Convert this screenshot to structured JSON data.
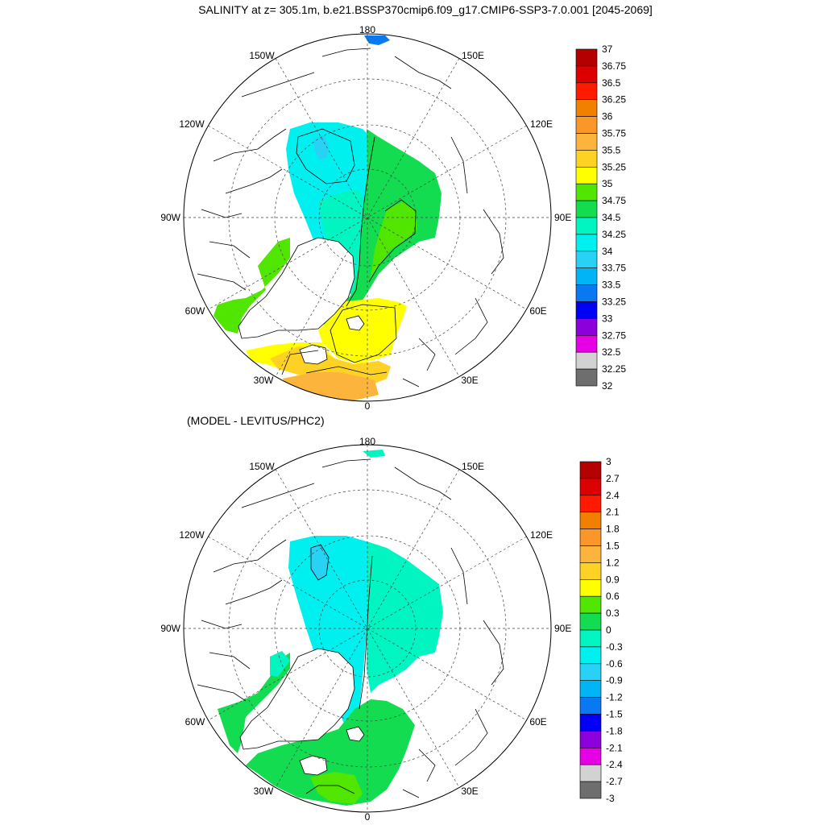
{
  "title": "SALINITY at z= 305.1m, b.e21.BSSP370cmip6.f09_g17.CMIP6-SSP3-7.0.001 [2045-2069]",
  "subtitle": "(MODEL - LEVITUS/PHC2)",
  "longitude_labels": {
    "top": "180",
    "bottom": "0",
    "left": "90W",
    "right": "90E",
    "w150": "150W",
    "e150": "150E",
    "w120": "120W",
    "e120": "120E",
    "w60": "60W",
    "e60": "60E",
    "w30": "30W",
    "e30": "30E"
  },
  "colorbar_top": {
    "labels": [
      "37",
      "36.75",
      "36.5",
      "36.25",
      "36",
      "35.75",
      "35.5",
      "35.25",
      "35",
      "34.75",
      "34.5",
      "34.25",
      "34",
      "33.75",
      "33.5",
      "33.25",
      "33",
      "32.75",
      "32.5",
      "32.25",
      "32"
    ],
    "colors": [
      "#b40000",
      "#dd0000",
      "#ff1a00",
      "#f28000",
      "#fb9628",
      "#fcb43c",
      "#fdd224",
      "#ffff00",
      "#50e600",
      "#14dc50",
      "#00f5c0",
      "#00f0f0",
      "#28d2f5",
      "#00b4f5",
      "#0a78f0",
      "#0000f5",
      "#8c00dc",
      "#e600e6",
      "#d2d2d2",
      "#6e6e6e"
    ]
  },
  "colorbar_bottom": {
    "labels": [
      "3",
      "2.7",
      "2.4",
      "2.1",
      "1.8",
      "1.5",
      "1.2",
      "0.9",
      "0.6",
      "0.3",
      "0",
      "-0.3",
      "-0.6",
      "-0.9",
      "-1.2",
      "-1.5",
      "-1.8",
      "-2.1",
      "-2.4",
      "-2.7",
      "-3"
    ],
    "colors": [
      "#b40000",
      "#dd0000",
      "#ff1a00",
      "#f28000",
      "#fb9628",
      "#fcb43c",
      "#fdd224",
      "#ffff00",
      "#50e600",
      "#14dc50",
      "#00f5c0",
      "#00f0f0",
      "#28d2f5",
      "#00b4f5",
      "#0a78f0",
      "#0000f5",
      "#8c00dc",
      "#e600e6",
      "#d2d2d2",
      "#6e6e6e"
    ]
  }
}
